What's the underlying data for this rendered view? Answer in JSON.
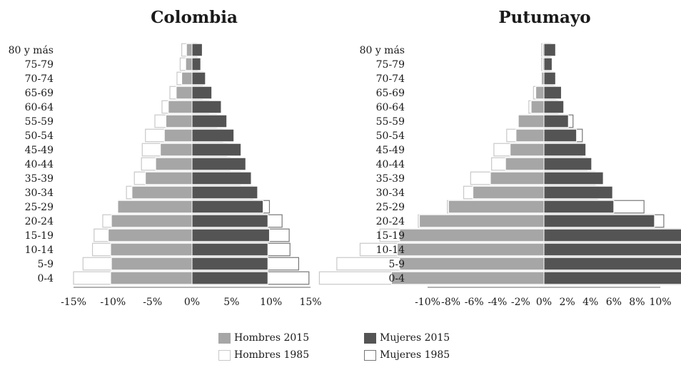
{
  "colors": {
    "hombres_2015": "#a6a6a6",
    "mujeres_2015": "#545454",
    "hombres_1985_stroke": "#c8c8c8",
    "mujeres_1985_stroke": "#777777",
    "axis": "#666666"
  },
  "legend": [
    {
      "label": "Hombres 2015",
      "style": "hombres_2015"
    },
    {
      "label": "Mujeres 2015",
      "style": "mujeres_2015"
    },
    {
      "label": "Hombres 1985",
      "style": "hombres_1985"
    },
    {
      "label": "Mujeres 1985",
      "style": "mujeres_1985"
    }
  ],
  "chart_data": [
    {
      "type": "bar",
      "orientation": "horizontal-population-pyramid",
      "title": "Colombia",
      "age_groups": [
        "80 y más",
        "75-79",
        "70-74",
        "65-69",
        "60-64",
        "55-59",
        "50-54",
        "45-49",
        "40-44",
        "35-39",
        "30-34",
        "25-29",
        "20-24",
        "15-19",
        "10-14",
        "5-9",
        "0-4"
      ],
      "xlim": [
        -15,
        15
      ],
      "xticks": [
        -15,
        -10,
        -5,
        0,
        5,
        10,
        15
      ],
      "xtick_labels": [
        "-15%",
        "-10%",
        "-5%",
        "0%",
        "5%",
        "10%",
        "15%"
      ],
      "series": [
        {
          "name": "Hombres 2015",
          "values": [
            -0.7,
            -0.8,
            -1.3,
            -2.0,
            -3.0,
            -3.3,
            -3.5,
            -4.0,
            -4.6,
            -5.9,
            -7.6,
            -9.4,
            -10.2,
            -10.6,
            -10.3,
            -10.2,
            -10.3
          ]
        },
        {
          "name": "Mujeres 2015",
          "values": [
            1.3,
            1.1,
            1.7,
            2.5,
            3.7,
            4.4,
            5.3,
            6.2,
            6.8,
            7.5,
            8.3,
            9.0,
            9.6,
            9.8,
            9.6,
            9.6,
            9.6
          ]
        },
        {
          "name": "Hombres 1985",
          "values": [
            -1.3,
            -1.5,
            -1.9,
            -2.8,
            -3.8,
            -4.7,
            -5.9,
            -6.3,
            -6.4,
            -7.3,
            -8.3,
            -9.3,
            -11.3,
            -12.4,
            -12.6,
            -13.8,
            -15.0
          ]
        },
        {
          "name": "Mujeres 1985",
          "values": [
            0.6,
            0.7,
            1.4,
            1.3,
            2.1,
            3.1,
            3.9,
            4.4,
            4.8,
            6.1,
            7.7,
            9.8,
            11.4,
            12.3,
            12.4,
            13.5,
            14.8
          ]
        }
      ]
    },
    {
      "type": "bar",
      "orientation": "horizontal-population-pyramid",
      "title": "Putumayo",
      "age_groups": [
        "80 y más",
        "75-79",
        "70-74",
        "65-69",
        "60-64",
        "55-59",
        "50-54",
        "45-49",
        "40-44",
        "35-39",
        "30-34",
        "25-29",
        "20-24",
        "15-19",
        "10-14",
        "5-9",
        "0-4"
      ],
      "xlim": [
        -10,
        10
      ],
      "xticks": [
        -10,
        -8,
        -6,
        -4,
        -2,
        0,
        2,
        4,
        6,
        8,
        10
      ],
      "xtick_labels": [
        "-10%",
        "-8%",
        "-6%",
        "-4%",
        "-2%",
        "0%",
        "2%",
        "4%",
        "6%",
        "8%",
        "10%"
      ],
      "series": [
        {
          "name": "Hombres 2015",
          "values": [
            -0.1,
            -0.1,
            -0.2,
            -0.7,
            -1.1,
            -2.2,
            -2.4,
            -2.9,
            -3.3,
            -4.6,
            -6.1,
            -8.2,
            -10.7,
            -12.4,
            -12.6,
            -12.4,
            -13.1
          ]
        },
        {
          "name": "Mujeres 2015",
          "values": [
            1.0,
            0.7,
            1.0,
            1.5,
            1.7,
            2.1,
            2.8,
            3.6,
            4.1,
            5.1,
            5.9,
            6.0,
            9.5,
            13.1,
            13.1,
            12.8,
            13.7
          ]
        },
        {
          "name": "Hombres 1985",
          "values": [
            -0.2,
            -0.2,
            -0.2,
            -0.9,
            -1.3,
            -2.1,
            -3.2,
            -4.3,
            -4.5,
            -6.3,
            -6.9,
            -8.3,
            -10.8,
            -14.1,
            -15.8,
            -17.8,
            -19.3
          ]
        },
        {
          "name": "Mujeres 1985",
          "values": [
            0.6,
            0.5,
            0.8,
            1.0,
            1.2,
            2.5,
            3.3,
            3.3,
            3.7,
            4.4,
            4.6,
            8.6,
            10.3,
            12.9,
            14.1,
            16.4,
            18.8
          ]
        }
      ]
    }
  ]
}
